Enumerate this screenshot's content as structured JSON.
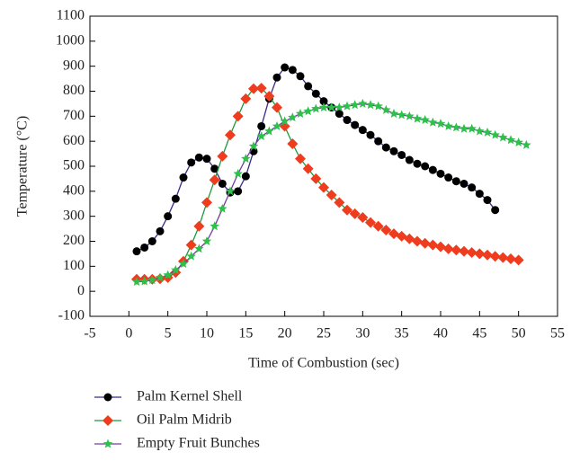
{
  "chart_data": {
    "type": "line",
    "x_label": "Time of Combustion (sec)",
    "y_label": "Temperature (°C)",
    "xlim": [
      -5,
      55
    ],
    "xticks": [
      -5,
      0,
      5,
      10,
      15,
      20,
      25,
      30,
      35,
      40,
      45,
      50,
      55
    ],
    "ylim": [
      -100,
      1100
    ],
    "yticks": [
      -100,
      0,
      100,
      200,
      300,
      400,
      500,
      600,
      700,
      800,
      900,
      1000,
      1100
    ],
    "series": [
      {
        "name": "Palm Kernel Shell",
        "color": "#000000",
        "line_color": "#3a2a8a",
        "marker": "circle",
        "x": [
          1,
          2,
          3,
          4,
          5,
          6,
          7,
          8,
          9,
          10,
          11,
          12,
          13,
          14,
          15,
          16,
          17,
          18,
          19,
          20,
          21,
          22,
          23,
          24,
          25,
          26,
          27,
          28,
          29,
          30,
          31,
          32,
          33,
          34,
          35,
          36,
          37,
          38,
          39,
          40,
          41,
          42,
          43,
          44,
          45,
          46,
          47
        ],
        "values": [
          160,
          175,
          200,
          240,
          300,
          370,
          455,
          515,
          535,
          530,
          490,
          430,
          395,
          400,
          460,
          560,
          660,
          770,
          855,
          895,
          885,
          860,
          820,
          790,
          760,
          735,
          710,
          685,
          665,
          645,
          625,
          600,
          575,
          560,
          545,
          525,
          510,
          500,
          485,
          470,
          455,
          440,
          430,
          415,
          390,
          365,
          325
        ]
      },
      {
        "name": "Oil Palm Midrib",
        "color": "#f03c1e",
        "line_color": "#1e9a3c",
        "marker": "diamond",
        "x": [
          1,
          2,
          3,
          4,
          5,
          6,
          7,
          8,
          9,
          10,
          11,
          12,
          13,
          14,
          15,
          16,
          17,
          18,
          19,
          20,
          21,
          22,
          23,
          24,
          25,
          26,
          27,
          28,
          29,
          30,
          31,
          32,
          33,
          34,
          35,
          36,
          37,
          38,
          39,
          40,
          41,
          42,
          43,
          44,
          45,
          46,
          47,
          48,
          49,
          50
        ],
        "values": [
          48,
          48,
          48,
          50,
          55,
          75,
          120,
          185,
          260,
          355,
          445,
          540,
          625,
          700,
          770,
          810,
          812,
          780,
          735,
          660,
          590,
          530,
          490,
          450,
          415,
          385,
          355,
          325,
          310,
          295,
          275,
          260,
          245,
          230,
          220,
          210,
          200,
          192,
          185,
          178,
          170,
          165,
          160,
          155,
          150,
          145,
          140,
          135,
          130,
          125
        ]
      },
      {
        "name": "Empty Fruit Bunches",
        "color": "#2ec04a",
        "line_color": "#7a3aa0",
        "marker": "star",
        "x": [
          1,
          2,
          3,
          4,
          5,
          6,
          7,
          8,
          9,
          10,
          11,
          12,
          13,
          14,
          15,
          16,
          17,
          18,
          19,
          20,
          21,
          22,
          23,
          24,
          25,
          26,
          27,
          28,
          29,
          30,
          31,
          32,
          33,
          34,
          35,
          36,
          37,
          38,
          39,
          40,
          41,
          42,
          43,
          44,
          45,
          46,
          47,
          48,
          49,
          50,
          51
        ],
        "values": [
          38,
          40,
          45,
          55,
          65,
          85,
          110,
          140,
          170,
          200,
          260,
          330,
          400,
          470,
          530,
          580,
          620,
          640,
          660,
          680,
          695,
          710,
          720,
          730,
          735,
          735,
          735,
          740,
          745,
          750,
          745,
          740,
          725,
          710,
          705,
          700,
          690,
          685,
          675,
          670,
          660,
          655,
          650,
          650,
          640,
          635,
          625,
          615,
          605,
          595,
          585
        ]
      }
    ]
  }
}
